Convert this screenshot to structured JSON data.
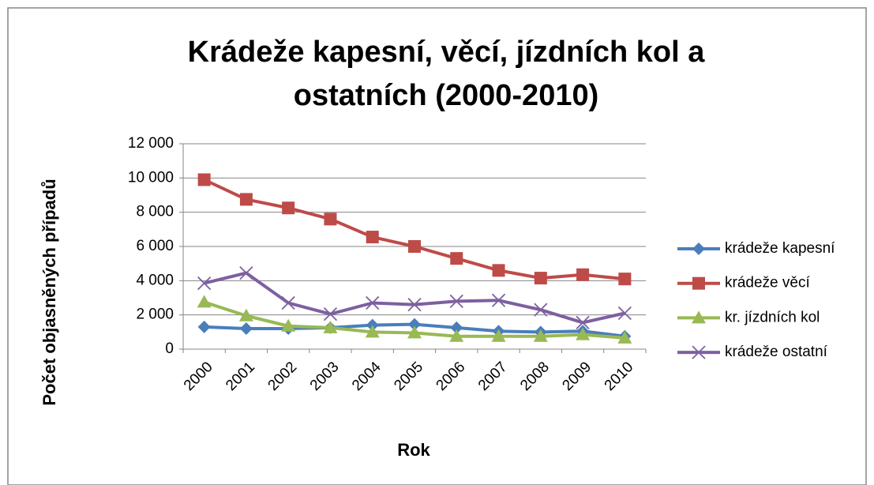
{
  "chart_data": {
    "type": "line",
    "title": "Krádeže kapesní, věcí, jízdních kol a ostatních (2000-2010)",
    "title_lines": [
      "Krádeže kapesní, věcí, jízdních kol a",
      "ostatních (2000-2010)"
    ],
    "x_label": "Rok",
    "y_label": "Počet objasněných případů",
    "categories": [
      "2000",
      "2001",
      "2002",
      "2003",
      "2004",
      "2005",
      "2006",
      "2007",
      "2008",
      "2009",
      "2010"
    ],
    "ylim": [
      0,
      12000
    ],
    "yticks": [
      0,
      {
        "value": 2000,
        "label": "2 000"
      },
      {
        "value": 4000,
        "label": "4 000"
      },
      {
        "value": 6000,
        "label": "6 000"
      },
      {
        "value": 8000,
        "label": "8 000"
      },
      {
        "value": 10000,
        "label": "10 000"
      },
      {
        "value": 12000,
        "label": "12 000"
      }
    ],
    "grid": true,
    "legend": "right",
    "series": [
      {
        "name": "krádeže kapesní",
        "color": "#4a7ebb",
        "marker": "diamond",
        "values": [
          1300,
          1200,
          1200,
          1250,
          1400,
          1450,
          1250,
          1050,
          1000,
          1050,
          750
        ]
      },
      {
        "name": "krádeže věcí",
        "color": "#be4b48",
        "marker": "square",
        "values": [
          9900,
          8750,
          8250,
          7600,
          6550,
          6000,
          5300,
          4600,
          4150,
          4350,
          4100
        ]
      },
      {
        "name": "kr. jízdních kol",
        "color": "#98b954",
        "marker": "triangle",
        "values": [
          2750,
          1950,
          1350,
          1250,
          1000,
          950,
          750,
          750,
          750,
          850,
          650
        ]
      },
      {
        "name": "krádeže ostatní",
        "color": "#7d60a0",
        "marker": "x",
        "values": [
          3850,
          4450,
          2700,
          2050,
          2700,
          2600,
          2800,
          2850,
          2300,
          1550,
          2100
        ]
      }
    ]
  }
}
